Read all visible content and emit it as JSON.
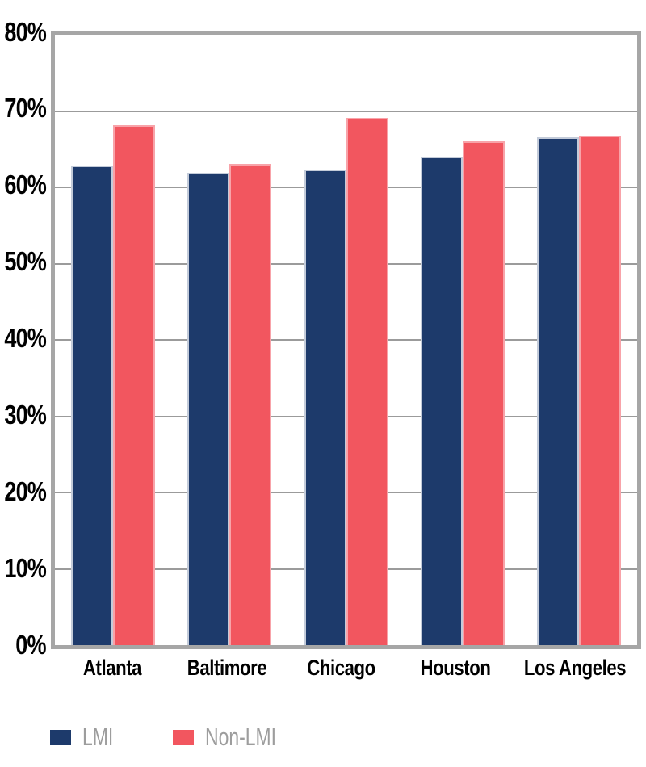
{
  "chart_data": {
    "type": "bar",
    "categories": [
      "Atlanta",
      "Baltimore",
      "Chicago",
      "Houston",
      "Los Angeles"
    ],
    "series": [
      {
        "name": "LMI",
        "color": "#1d3a6b",
        "edge_color": "#c3cbd9",
        "values": [
          62.9,
          61.9,
          62.3,
          64.0,
          66.6
        ]
      },
      {
        "name": "Non-LMI",
        "color": "#f2565f",
        "edge_color": "#f8a3a9",
        "values": [
          68.1,
          63.1,
          69.1,
          66.0,
          66.8
        ]
      }
    ],
    "ylim": [
      0,
      80
    ],
    "y_tick_labels": [
      "80%",
      "70%",
      "60%",
      "50%",
      "40%",
      "30%",
      "20%",
      "10%",
      "0%"
    ],
    "grid": "horizontal",
    "gridline_color": "#9b9b9b",
    "axis_border_color": "#a6a6a6",
    "tick_label_color": "#000000",
    "legend": {
      "position": "bottom-left",
      "text_color": "#9d9d9d"
    }
  }
}
